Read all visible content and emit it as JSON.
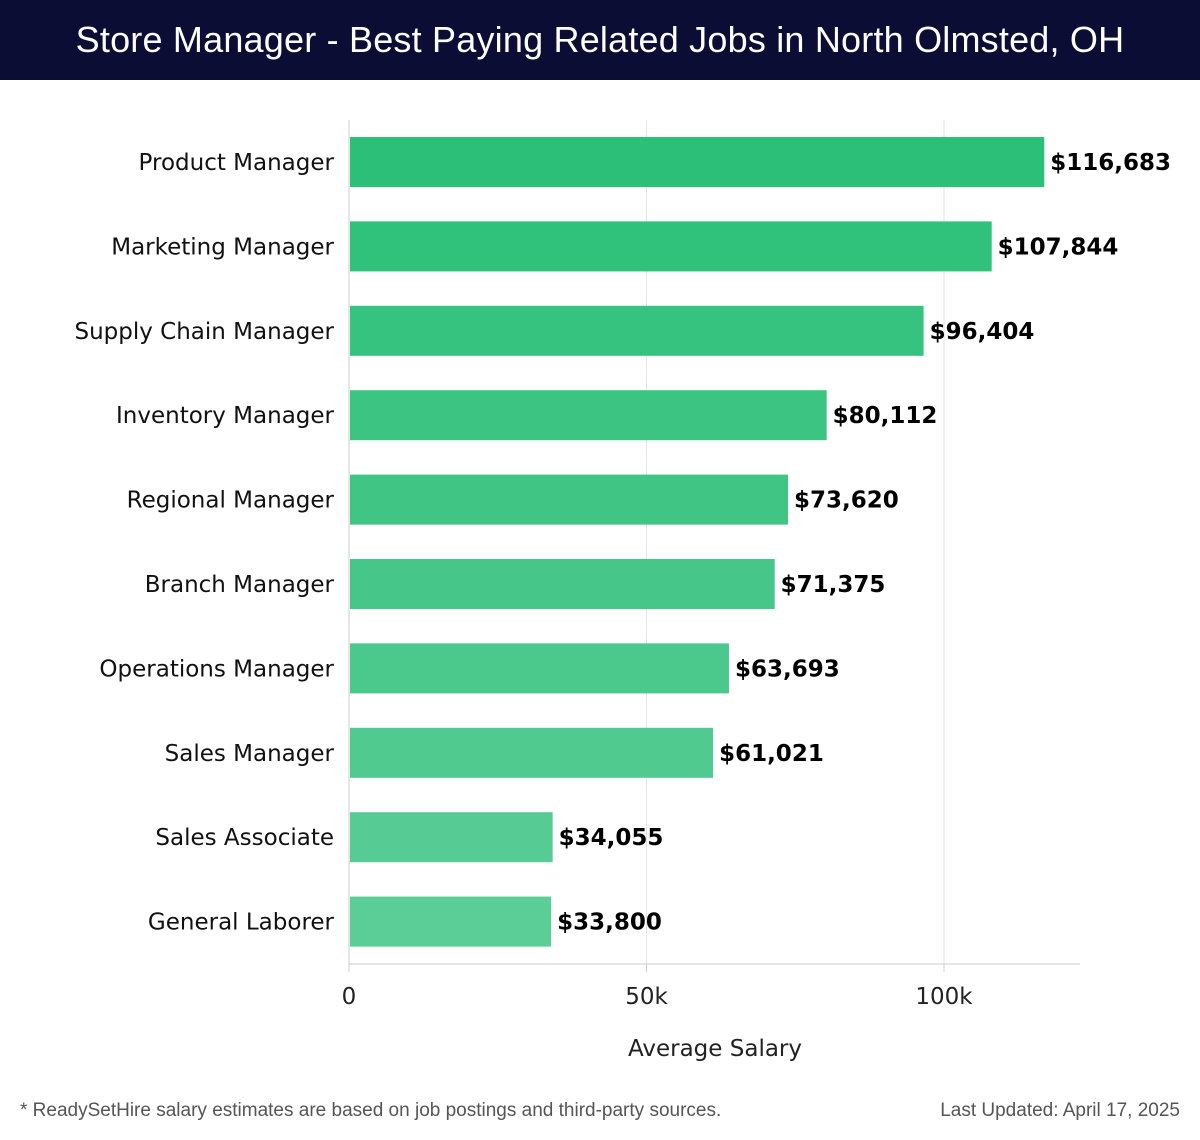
{
  "header": {
    "title": "Store Manager - Best Paying Related Jobs in North Olmsted, OH"
  },
  "colors": {
    "header_bg": "#0b0d35",
    "bar_dark": "#2bbf78",
    "bar_light": "#5bcd96",
    "grid": "#e3e3e3",
    "axis": "#cccccc"
  },
  "chart_data": {
    "type": "bar",
    "orientation": "horizontal",
    "categories": [
      "Product Manager",
      "Marketing Manager",
      "Supply Chain Manager",
      "Inventory Manager",
      "Regional Manager",
      "Branch Manager",
      "Operations Manager",
      "Sales Manager",
      "Sales Associate",
      "General Laborer"
    ],
    "values": [
      116683,
      107844,
      96404,
      80112,
      73620,
      71375,
      63693,
      61021,
      34055,
      33800
    ],
    "value_labels": [
      "$116,683",
      "$107,844",
      "$96,404",
      "$80,112",
      "$73,620",
      "$71,375",
      "$63,693",
      "$61,021",
      "$34,055",
      "$33,800"
    ],
    "xlabel": "Average Salary",
    "ylabel": "",
    "xlim": [
      0,
      123000
    ],
    "xticks": [
      0,
      50000,
      100000
    ],
    "xtick_labels": [
      "0",
      "50k",
      "100k"
    ],
    "grid": true
  },
  "footer": {
    "note": "* ReadySetHire salary estimates are based on job postings and third-party sources.",
    "updated": "Last Updated: April 17, 2025"
  }
}
